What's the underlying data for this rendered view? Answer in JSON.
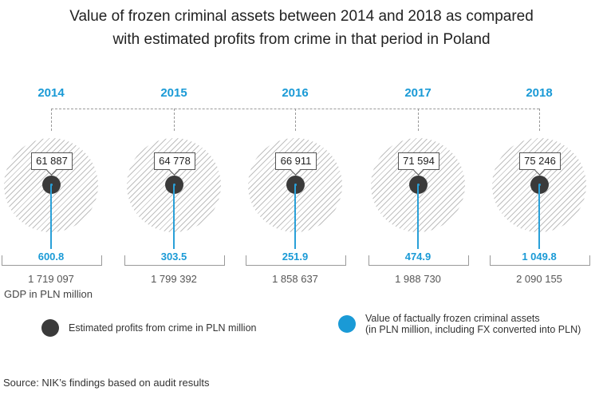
{
  "title_line1": "Value of frozen criminal assets between 2014 and 2018 as compared",
  "title_line2": "with estimated profits from crime in that  period in Poland",
  "gdp_label": "GDP in PLN million",
  "legend": {
    "profits": "Estimated profits from crime in PLN million",
    "frozen_line1": "Value of factually frozen criminal assets",
    "frozen_line2": "(in PLN million, including FX converted into PLN)"
  },
  "source": "Source: NIK’s findings based on audit results",
  "colors": {
    "accent": "#1a9ad6",
    "dot": "#3a3a3a",
    "hatch": "#b8b8b8"
  },
  "years": [
    {
      "year": "2014",
      "profits": "61 887",
      "frozen": "600.8",
      "gdp": "1 719 097"
    },
    {
      "year": "2015",
      "profits": "64 778",
      "frozen": "303.5",
      "gdp": "1 799 392"
    },
    {
      "year": "2016",
      "profits": "66 911",
      "frozen": "251.9",
      "gdp": "1 858 637"
    },
    {
      "year": "2017",
      "profits": "71 594",
      "frozen": "474.9",
      "gdp": "1 988 730"
    },
    {
      "year": "2018",
      "profits": "75 246",
      "frozen": "1 049.8",
      "gdp": "2 090 155"
    }
  ],
  "chart_data": {
    "type": "table",
    "title": "Value of frozen criminal assets between 2014 and 2018 as compared with estimated profits from crime in that period in Poland",
    "categories": [
      "2014",
      "2015",
      "2016",
      "2017",
      "2018"
    ],
    "series": [
      {
        "name": "Estimated profits from crime in PLN million",
        "values": [
          61887,
          64778,
          66911,
          71594,
          75246
        ]
      },
      {
        "name": "Value of factually frozen criminal assets (in PLN million, including FX converted into PLN)",
        "values": [
          600.8,
          303.5,
          251.9,
          474.9,
          1049.8
        ]
      },
      {
        "name": "GDP in PLN million",
        "values": [
          1719097,
          1799392,
          1858637,
          1988730,
          2090155
        ]
      }
    ],
    "source": "Source: NIK’s findings based on audit results"
  }
}
